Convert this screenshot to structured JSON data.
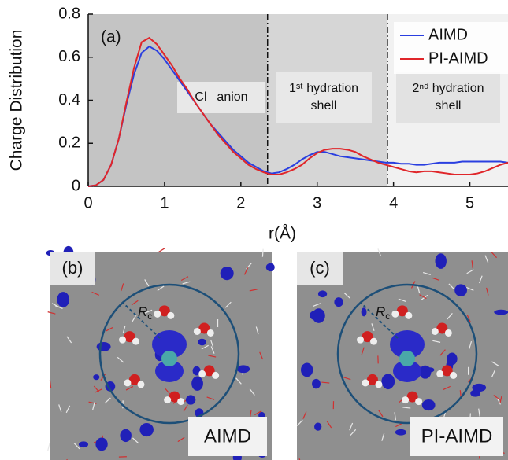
{
  "chart_data": {
    "type": "line",
    "panel_label": "(a)",
    "ylabel": "Charge Distribution",
    "xlabel": "r(Å)",
    "xlim": [
      0,
      5.5
    ],
    "ylim": [
      0,
      0.8
    ],
    "xticks": [
      0,
      1,
      2,
      3,
      4,
      5
    ],
    "yticks": [
      0,
      0.2,
      0.4,
      0.6,
      0.8
    ],
    "boundaries": [
      2.35,
      3.92
    ],
    "region_labels": [
      [
        "Cl⁻ anion"
      ],
      [
        "1ˢᵗ hydration",
        "shell"
      ],
      [
        "2ⁿᵈ hydration",
        "shell"
      ]
    ],
    "legend": "upper right",
    "x": [
      0,
      0.1,
      0.2,
      0.3,
      0.4,
      0.5,
      0.6,
      0.7,
      0.8,
      0.9,
      1.0,
      1.1,
      1.2,
      1.3,
      1.4,
      1.5,
      1.6,
      1.7,
      1.8,
      1.9,
      2.0,
      2.1,
      2.2,
      2.3,
      2.4,
      2.5,
      2.6,
      2.7,
      2.8,
      2.9,
      3.0,
      3.1,
      3.2,
      3.3,
      3.4,
      3.5,
      3.6,
      3.7,
      3.8,
      3.9,
      4.0,
      4.1,
      4.2,
      4.3,
      4.4,
      4.5,
      4.6,
      4.7,
      4.8,
      4.9,
      5.0,
      5.1,
      5.2,
      5.3,
      5.4,
      5.5
    ],
    "series": [
      {
        "name": "AIMD",
        "color": "#2a3fe0",
        "values": [
          0,
          0.005,
          0.03,
          0.1,
          0.22,
          0.38,
          0.52,
          0.62,
          0.65,
          0.63,
          0.59,
          0.54,
          0.49,
          0.44,
          0.39,
          0.34,
          0.29,
          0.25,
          0.21,
          0.17,
          0.14,
          0.11,
          0.09,
          0.07,
          0.06,
          0.065,
          0.08,
          0.1,
          0.125,
          0.145,
          0.16,
          0.16,
          0.15,
          0.14,
          0.135,
          0.13,
          0.125,
          0.12,
          0.115,
          0.11,
          0.11,
          0.105,
          0.105,
          0.1,
          0.1,
          0.105,
          0.11,
          0.11,
          0.11,
          0.115,
          0.115,
          0.115,
          0.115,
          0.115,
          0.115,
          0.11
        ]
      },
      {
        "name": "PI-AIMD",
        "color": "#e0262a",
        "values": [
          0,
          0.005,
          0.03,
          0.1,
          0.22,
          0.39,
          0.55,
          0.67,
          0.69,
          0.66,
          0.61,
          0.56,
          0.5,
          0.45,
          0.39,
          0.34,
          0.29,
          0.24,
          0.2,
          0.16,
          0.13,
          0.1,
          0.08,
          0.065,
          0.055,
          0.055,
          0.065,
          0.08,
          0.1,
          0.13,
          0.155,
          0.17,
          0.175,
          0.175,
          0.17,
          0.16,
          0.14,
          0.125,
          0.11,
          0.1,
          0.09,
          0.08,
          0.07,
          0.065,
          0.07,
          0.07,
          0.065,
          0.06,
          0.055,
          0.055,
          0.055,
          0.06,
          0.07,
          0.085,
          0.1,
          0.11
        ]
      }
    ]
  },
  "panels": [
    {
      "label": "(b)",
      "radius_label": "R",
      "radius_subscript": "c",
      "method": "AIMD"
    },
    {
      "label": "(c)",
      "radius_label": "R",
      "radius_subscript": "c",
      "method": "PI-AIMD"
    }
  ]
}
